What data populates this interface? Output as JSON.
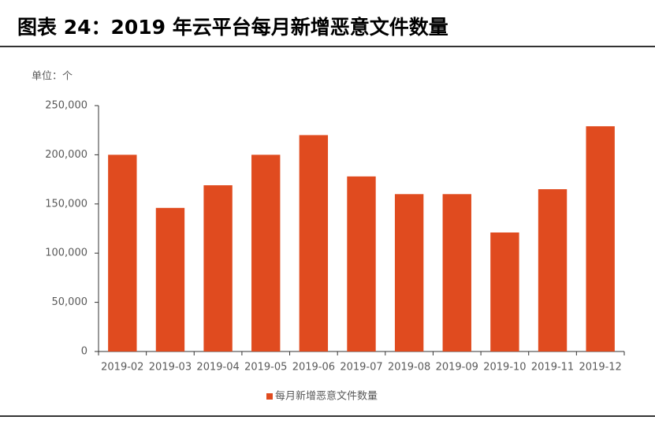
{
  "chart_data": {
    "type": "bar",
    "title": "图表 24：2019 年云平台每月新增恶意文件数量",
    "unit_label": "单位：个",
    "categories": [
      "2019-02",
      "2019-03",
      "2019-04",
      "2019-05",
      "2019-06",
      "2019-07",
      "2019-08",
      "2019-09",
      "2019-10",
      "2019-11",
      "2019-12"
    ],
    "series": [
      {
        "name": "每月新增恶意文件数量",
        "color": "#e04b1f",
        "values": [
          200000,
          146000,
          169000,
          200000,
          220000,
          178000,
          160000,
          160000,
          121000,
          165000,
          229000
        ]
      }
    ],
    "ylim": [
      0,
      250000
    ],
    "yticks": [
      0,
      {
        "value": 50000,
        "label": "50,000"
      },
      {
        "value": 100000,
        "label": "100,000"
      },
      {
        "value": 150000,
        "label": "150,000"
      },
      {
        "value": 200000,
        "label": "200,000"
      },
      {
        "value": 250000,
        "label": "250,000"
      }
    ],
    "grid": false,
    "legend": "bottom"
  }
}
